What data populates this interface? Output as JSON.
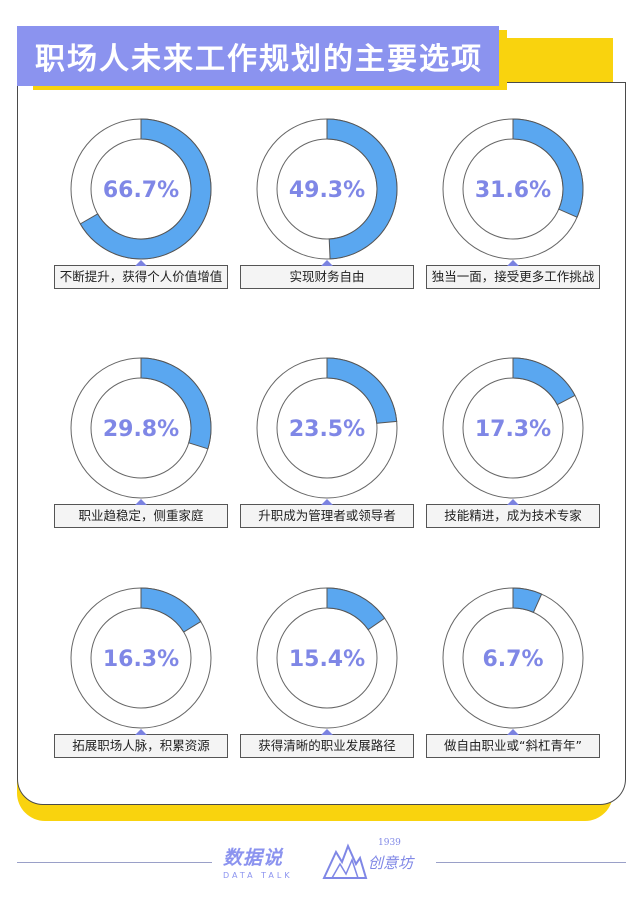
{
  "title": "职场人未来工作规划的主要选项",
  "chart_data": {
    "type": "pie",
    "style": "donut",
    "items": [
      {
        "label": "不断提升，获得个人价值增值",
        "value": 66.7,
        "display": "66.7%"
      },
      {
        "label": "实现财务自由",
        "value": 49.3,
        "display": "49.3%"
      },
      {
        "label": "独当一面，接受更多工作挑战",
        "value": 31.6,
        "display": "31.6%"
      },
      {
        "label": "职业趋稳定，侧重家庭",
        "value": 29.8,
        "display": "29.8%"
      },
      {
        "label": "升职成为管理者或领导者",
        "value": 23.5,
        "display": "23.5%"
      },
      {
        "label": "技能精进，成为技术专家",
        "value": 17.3,
        "display": "17.3%"
      },
      {
        "label": "拓展职场人脉，积累资源",
        "value": 16.3,
        "display": "16.3%"
      },
      {
        "label": "获得清晰的职业发展路径",
        "value": 15.4,
        "display": "15.4%"
      },
      {
        "label": "做自由职业或“斜杠青年”",
        "value": 6.7,
        "display": "6.7%"
      }
    ]
  },
  "colors": {
    "accent": "#8b93ef",
    "arc": "#5aa7f0",
    "yellow": "#f9d30e",
    "percent_text": "#7f87e6"
  },
  "footer": {
    "brand1_name": "数据说",
    "brand1_sub": "DATA TALK",
    "brand2_year": "1939",
    "brand2_name": "创意坊",
    "brand2_icon": "mountain-logo-icon"
  }
}
